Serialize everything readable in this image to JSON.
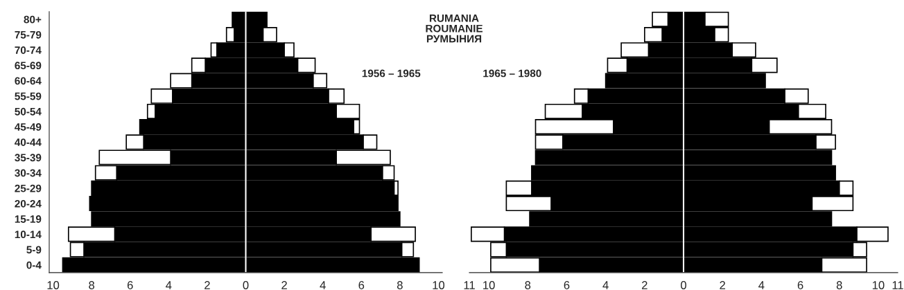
{
  "chart_data": [
    {
      "type": "bar",
      "orientation": "horizontal",
      "stacked": true,
      "title": "RUMANIA\nROUMANIE\nРУМЫНИЯ",
      "annotations": [
        "1956 – 1965"
      ],
      "categories": [
        "80+",
        "75-79",
        "70-74",
        "65-69",
        "60-64",
        "55-59",
        "50-54",
        "45-49",
        "40-44",
        "35-39",
        "30-34",
        "25-29",
        "20-24",
        "15-19",
        "10-14",
        "5-9",
        "0-4"
      ],
      "series": [
        {
          "color": "#000000",
          "values": [
            -0.7,
            -0.6,
            -1.5,
            -2.1,
            -2.8,
            -3.8,
            -4.7,
            -5.5,
            -5.3,
            -3.9,
            -6.7,
            -8.0,
            -8.1,
            -8.0,
            -6.8,
            -8.4,
            -9.5
          ]
        },
        {
          "color": "#000000",
          "values": [
            1.1,
            0.9,
            2.0,
            2.7,
            3.5,
            4.3,
            4.7,
            5.6,
            6.1,
            4.7,
            7.1,
            7.7,
            7.9,
            8.0,
            6.5,
            8.1,
            9.0
          ]
        },
        {
          "color": "#ffffff",
          "values": [
            null,
            -0.4,
            -0.3,
            -0.7,
            -1.1,
            -1.1,
            -0.4,
            null,
            -0.9,
            -3.7,
            -1.1,
            null,
            null,
            null,
            -2.4,
            -0.7,
            null
          ]
        },
        {
          "color": "#ffffff",
          "values": [
            null,
            0.7,
            0.5,
            0.9,
            0.7,
            0.8,
            1.2,
            0.3,
            0.7,
            2.8,
            0.6,
            0.2,
            null,
            null,
            2.3,
            0.6,
            null
          ]
        }
      ],
      "xlim": [
        -10.2,
        10.2
      ],
      "xticks": [
        {
          "value": -10,
          "label": "10"
        },
        {
          "value": -8,
          "label": "8"
        },
        {
          "value": -6,
          "label": "6"
        },
        {
          "value": -4,
          "label": "4"
        },
        {
          "value": -2,
          "label": "2"
        },
        0,
        2,
        4,
        6,
        8,
        10
      ],
      "ref_lines": [
        {
          "axis": "x",
          "value": 0,
          "color": "#ffffff"
        }
      ]
    },
    {
      "type": "bar",
      "orientation": "horizontal",
      "stacked": true,
      "annotations": [
        "1965 – 1980"
      ],
      "tick_labels": "x",
      "categories": [
        null,
        null,
        null,
        null,
        null,
        null,
        null,
        null,
        null,
        null,
        null,
        null,
        null,
        null,
        null,
        null,
        null
      ],
      "series": [
        {
          "color": "#000000",
          "values": [
            -0.8,
            -1.1,
            -1.8,
            -2.9,
            -4.0,
            -4.9,
            -5.2,
            -3.6,
            -6.2,
            -7.6,
            -7.8,
            -7.8,
            -6.8,
            -7.9,
            -9.2,
            -9.1,
            -7.4
          ]
        },
        {
          "color": "#000000",
          "values": [
            1.1,
            1.6,
            2.5,
            3.5,
            4.2,
            5.2,
            5.9,
            4.4,
            6.8,
            7.6,
            7.8,
            8.0,
            6.6,
            7.6,
            8.9,
            8.7,
            7.1
          ]
        },
        {
          "color": "#ffffff",
          "values": [
            -0.8,
            -0.9,
            -1.4,
            -1.0,
            null,
            -0.7,
            -1.9,
            -4.0,
            -1.4,
            null,
            null,
            -1.3,
            -2.3,
            null,
            -1.7,
            -0.8,
            -2.5
          ]
        },
        {
          "color": "#ffffff",
          "values": [
            1.2,
            0.7,
            1.2,
            1.3,
            null,
            1.2,
            1.4,
            3.2,
            1.0,
            null,
            null,
            0.7,
            2.1,
            null,
            1.6,
            0.7,
            2.3
          ]
        }
      ],
      "xlim": [
        -11,
        11
      ],
      "xticks": [
        {
          "value": -11,
          "label": "11"
        },
        {
          "value": -10,
          "label": "10"
        },
        {
          "value": -8,
          "label": "8"
        },
        {
          "value": -6,
          "label": "6"
        },
        {
          "value": -4,
          "label": "4"
        },
        {
          "value": -2,
          "label": "2"
        },
        0,
        2,
        4,
        6,
        8,
        10,
        11
      ],
      "ref_lines": [
        {
          "axis": "x",
          "value": 0,
          "color": "#ffffff"
        }
      ]
    }
  ]
}
